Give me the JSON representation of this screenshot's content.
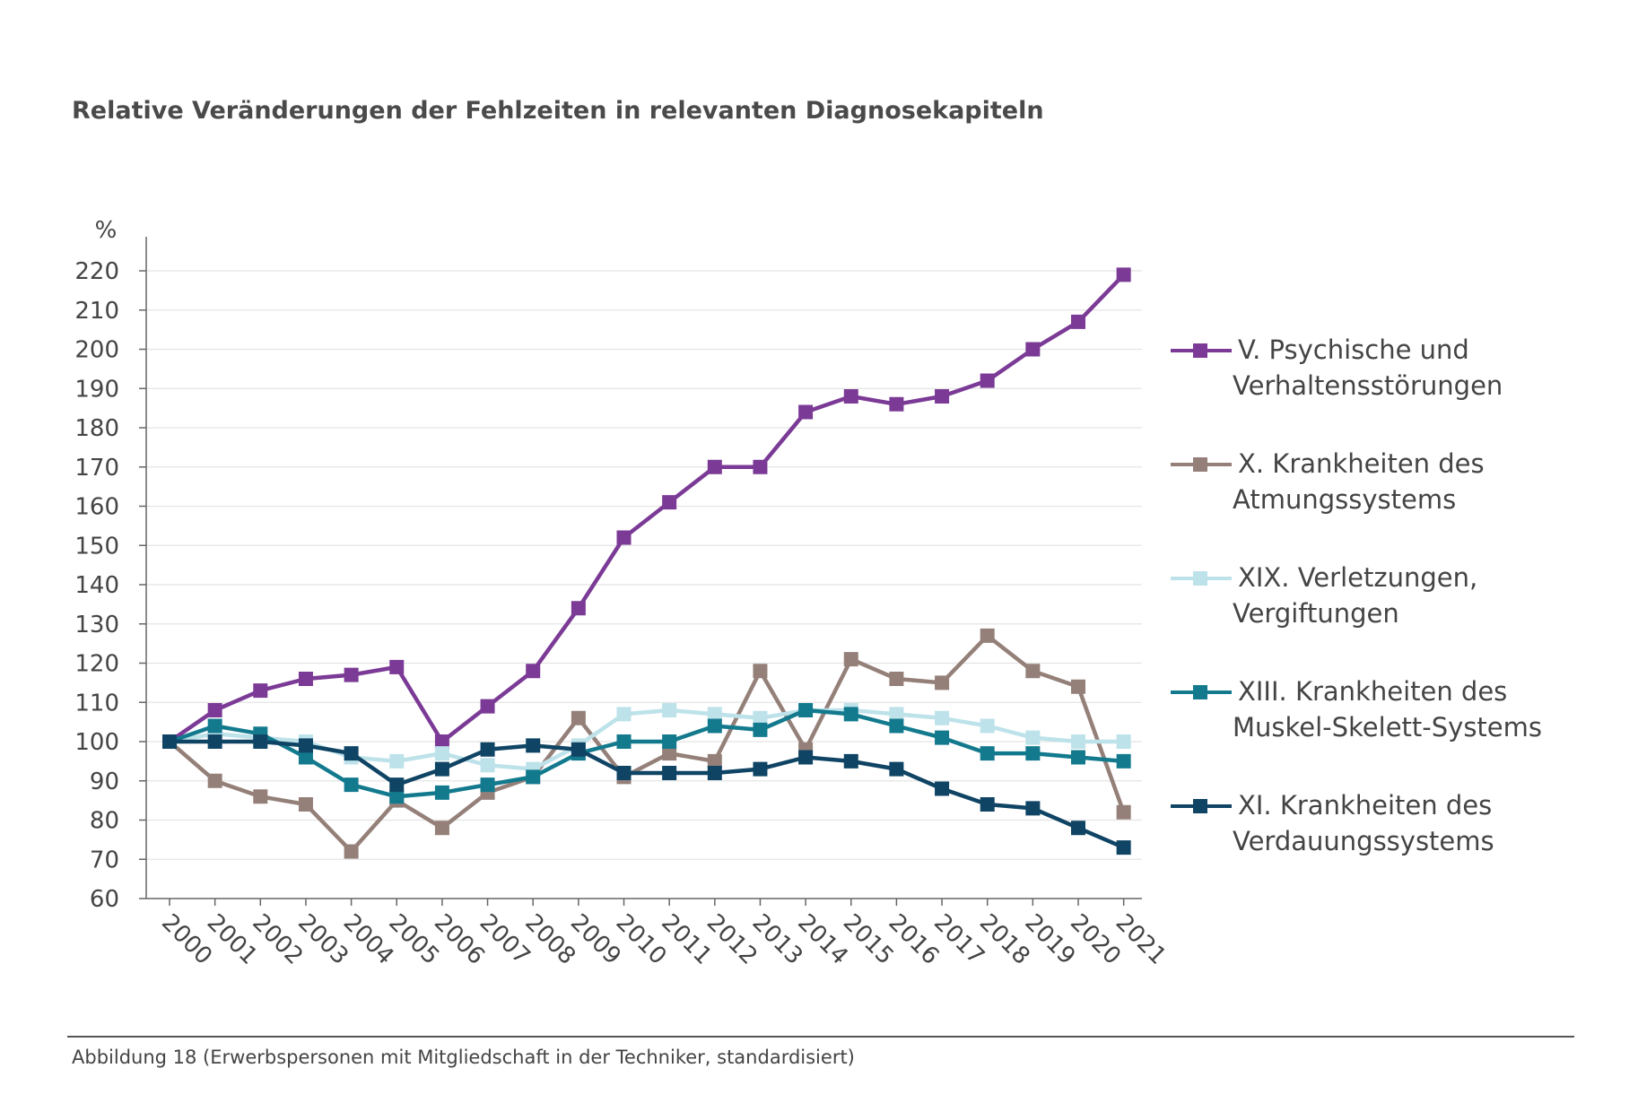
{
  "title": "Relative Veränderungen der Fehlzeiten in relevanten Diagnosekapiteln",
  "caption": "Abbildung 18 (Erwerbspersonen mit Mitgliedschaft in der Techniker, standardisiert)",
  "chart_data": {
    "type": "line",
    "title": "Relative Veränderungen der Fehlzeiten in relevanten Diagnosekapiteln",
    "ylabel": "%",
    "xlabel": "",
    "ylim": [
      60,
      220
    ],
    "yticks": [
      60,
      70,
      80,
      90,
      100,
      110,
      120,
      130,
      140,
      150,
      160,
      170,
      180,
      190,
      200,
      210,
      220
    ],
    "categories": [
      "2000",
      "2001",
      "2002",
      "2003",
      "2004",
      "2005",
      "2006",
      "2007",
      "2008",
      "2009",
      "2010",
      "2011",
      "2012",
      "2013",
      "2014",
      "2015",
      "2016",
      "2017",
      "2018",
      "2019",
      "2020",
      "2021"
    ],
    "grid": true,
    "legend_position": "right",
    "series": [
      {
        "name_lines": [
          "V. Psychische und",
          "Verhaltensstörungen"
        ],
        "color": "#7B3A96",
        "values": [
          100,
          108,
          113,
          116,
          117,
          119,
          100,
          109,
          118,
          134,
          152,
          161,
          170,
          170,
          184,
          188,
          186,
          188,
          192,
          200,
          207,
          219
        ]
      },
      {
        "name_lines": [
          "X. Krankheiten des",
          "Atmungssystems"
        ],
        "color": "#948079",
        "values": [
          100,
          90,
          86,
          84,
          72,
          85,
          78,
          87,
          91,
          106,
          91,
          97,
          95,
          118,
          98,
          121,
          116,
          115,
          127,
          118,
          114,
          82
        ]
      },
      {
        "name_lines": [
          "XIX. Verletzungen,",
          "Vergiftungen"
        ],
        "color": "#BDE2EA",
        "values": [
          100,
          102,
          101,
          100,
          96,
          95,
          97,
          94,
          93,
          99,
          107,
          108,
          107,
          106,
          108,
          108,
          107,
          106,
          104,
          101,
          100,
          100
        ]
      },
      {
        "name_lines": [
          "XIII. Krankheiten des",
          "Muskel-Skelett-Systems"
        ],
        "color": "#137A8E",
        "values": [
          100,
          104,
          102,
          96,
          89,
          86,
          87,
          89,
          91,
          97,
          100,
          100,
          104,
          103,
          108,
          107,
          104,
          101,
          97,
          97,
          96,
          95
        ]
      },
      {
        "name_lines": [
          "XI. Krankheiten des",
          "Verdauungssystems"
        ],
        "color": "#0F4464",
        "values": [
          100,
          100,
          100,
          99,
          97,
          89,
          93,
          98,
          99,
          98,
          92,
          92,
          92,
          93,
          96,
          95,
          93,
          88,
          84,
          83,
          78,
          73
        ]
      }
    ]
  }
}
